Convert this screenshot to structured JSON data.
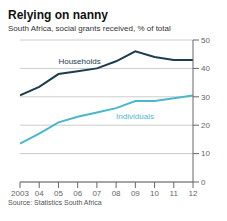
{
  "chart_data": {
    "type": "line",
    "title": "Relying on nanny",
    "subtitle": "South Africa, social grants received, % of total",
    "annotations": [
      "Source: Statistics South Africa"
    ],
    "x": [
      2003,
      2004,
      2005,
      2006,
      2007,
      2008,
      2009,
      2010,
      2011,
      2012
    ],
    "series": [
      {
        "name": "Households",
        "color": "#1c3d4f",
        "values": [
          30.5,
          33.5,
          38.0,
          39.0,
          40.0,
          42.5,
          46.0,
          44.0,
          43.0,
          43.0
        ]
      },
      {
        "name": "Individuals",
        "color": "#4ab8cc",
        "values": [
          13.5,
          17.0,
          21.0,
          23.0,
          24.5,
          26.0,
          28.5,
          28.5,
          29.5,
          30.5
        ]
      }
    ],
    "xlim": [
      2003,
      2012
    ],
    "xticks": [
      2003,
      {
        "value": 2004,
        "label": "04"
      },
      {
        "value": 2005,
        "label": "05"
      },
      {
        "value": 2006,
        "label": "06"
      },
      {
        "value": 2007,
        "label": "07"
      },
      {
        "value": 2008,
        "label": "08"
      },
      {
        "value": 2009,
        "label": "09"
      },
      {
        "value": 2010,
        "label": "10"
      },
      {
        "value": 2011,
        "label": "11"
      },
      {
        "value": 2012,
        "label": "12"
      }
    ],
    "ylim": [
      0,
      50
    ],
    "yticks": [
      0,
      10,
      20,
      30,
      40,
      50
    ],
    "grid": true
  }
}
